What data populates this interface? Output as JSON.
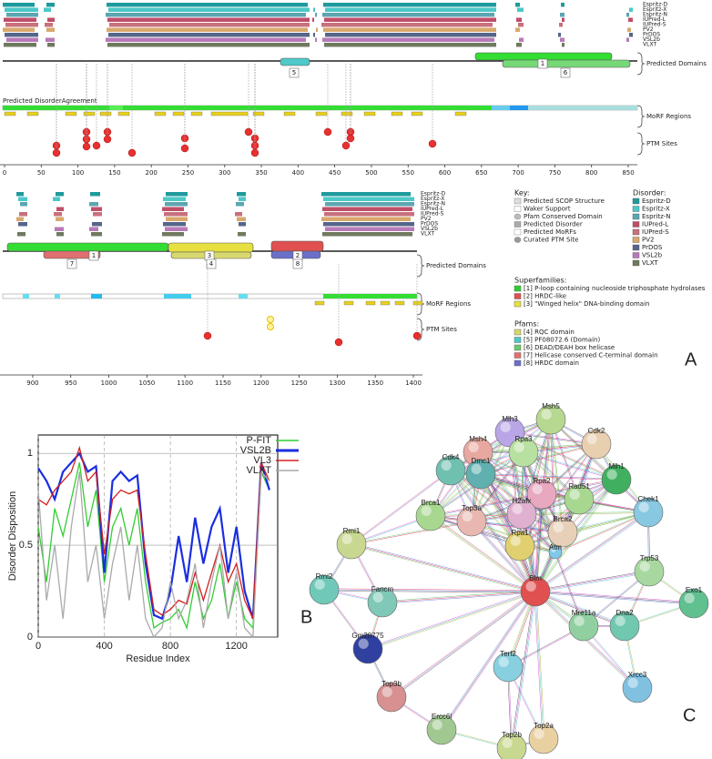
{
  "panel_a": {
    "label": "A",
    "top": {
      "track_labels": [
        "Espritz-D",
        "Espritz-X",
        "Espritz-N",
        "IUPred-L",
        "IUPred-S",
        "PV2",
        "PrDOS",
        "VSL2b",
        "VLXT"
      ],
      "agreement_label": "Predicted DisorderAgreement",
      "region_labels": [
        "Predicted Domains",
        "MoRF Regions",
        "PTM Sites"
      ],
      "domain_numbers": [
        "5",
        "1",
        "6"
      ],
      "xlim": [
        0,
        850
      ],
      "xticks": [
        0,
        50,
        100,
        150,
        200,
        250,
        300,
        350,
        400,
        450,
        500,
        550,
        600,
        650,
        700,
        750,
        800,
        850
      ]
    },
    "bottom": {
      "track_labels": [
        "Espritz-D",
        "Espritz-X",
        "Espritz-N",
        "IUPred-L",
        "IUPred-S",
        "PV2",
        "PrDOS",
        "VSL2b",
        "VLXT"
      ],
      "region_labels": [
        "Predicted Domains",
        "MoRF Regions",
        "PTM Sites"
      ],
      "domain_numbers": [
        "7",
        "1",
        "3",
        "4",
        "2",
        "8"
      ],
      "xlim": [
        857,
        1400
      ],
      "xticks": [
        900,
        950,
        1000,
        1050,
        1100,
        1150,
        1200,
        1250,
        1300,
        1350,
        1400
      ]
    },
    "key": {
      "title": "Key:",
      "items": [
        "Predicted SCOP Structure",
        "Waker Support",
        "Pfam Conserved Domain",
        "Predicted Disorder",
        "Predicted MoRFs",
        "Curated PTM Site"
      ]
    },
    "disorder": {
      "title": "Disorder:",
      "items": [
        {
          "name": "Espritz-D",
          "color": "#1f9a9c"
        },
        {
          "name": "Espritz-X",
          "color": "#4cc8c8"
        },
        {
          "name": "Espritz-N",
          "color": "#5ba6b2"
        },
        {
          "name": "IUPred-L",
          "color": "#c04f69"
        },
        {
          "name": "IUPred-S",
          "color": "#c8717c"
        },
        {
          "name": "PV2",
          "color": "#d9a86c"
        },
        {
          "name": "PrDOS",
          "color": "#56668a"
        },
        {
          "name": "VSL2b",
          "color": "#b87ab8"
        },
        {
          "name": "VLXT",
          "color": "#6f7a5f"
        }
      ]
    },
    "superfamilies": {
      "title": "Superfamilies:",
      "items": [
        {
          "name": "[1] P-loop containing nucleoside triphosphate hydrolases",
          "color": "#33cc33"
        },
        {
          "name": "[2] HRDC-like",
          "color": "#e05050"
        },
        {
          "name": "[3] \"Winged helix\" DNA-binding domain",
          "color": "#e8e040"
        }
      ]
    },
    "pfams": {
      "title": "Pfams:",
      "items": [
        {
          "name": "[4] RQC domain",
          "color": "#d8d870"
        },
        {
          "name": "[5] PF08072.6 (Domain)",
          "color": "#50c8c8"
        },
        {
          "name": "[6] DEAD/DEAH box helicase",
          "color": "#70c870"
        },
        {
          "name": "[7] Helicase conserved C-terminal domain",
          "color": "#e07070"
        },
        {
          "name": "[8] HRDC domain",
          "color": "#6a70c8"
        }
      ]
    }
  },
  "panel_b": {
    "label": "B"
  },
  "chart_data": {
    "type": "line",
    "x_label": "Residue Index",
    "y_label": "Disorder Disposition",
    "x": [
      0,
      50,
      100,
      150,
      200,
      250,
      300,
      350,
      400,
      450,
      500,
      550,
      600,
      650,
      700,
      750,
      800,
      850,
      900,
      950,
      1000,
      1050,
      1100,
      1150,
      1200,
      1250,
      1300,
      1350,
      1400
    ],
    "series": [
      {
        "name": "P-FIT",
        "color": "#33cc33",
        "values": [
          0.6,
          0.3,
          0.7,
          0.55,
          0.75,
          0.95,
          0.6,
          0.8,
          0.3,
          0.6,
          0.7,
          0.5,
          0.7,
          0.3,
          0.05,
          0.08,
          0.1,
          0.15,
          0.05,
          0.3,
          0.1,
          0.2,
          0.4,
          0.1,
          0.3,
          0.1,
          0.05,
          0.9,
          0.8
        ]
      },
      {
        "name": "VSL2B",
        "color": "#1a2ee0",
        "values": [
          0.92,
          0.85,
          0.75,
          0.9,
          0.95,
          1.0,
          0.9,
          0.93,
          0.35,
          0.85,
          0.9,
          0.85,
          0.88,
          0.4,
          0.12,
          0.1,
          0.25,
          0.55,
          0.3,
          0.65,
          0.4,
          0.6,
          0.7,
          0.35,
          0.6,
          0.25,
          0.1,
          0.95,
          0.8
        ]
      },
      {
        "name": "VL3",
        "color": "#d42020",
        "values": [
          0.75,
          0.72,
          0.8,
          0.85,
          0.9,
          1.03,
          0.85,
          0.9,
          0.45,
          0.75,
          0.8,
          0.78,
          0.8,
          0.45,
          0.15,
          0.12,
          0.15,
          0.2,
          0.18,
          0.35,
          0.2,
          0.35,
          0.5,
          0.3,
          0.4,
          0.2,
          0.1,
          0.95,
          0.85
        ]
      },
      {
        "name": "VLXT",
        "color": "#aaaaaa",
        "values": [
          0.8,
          0.2,
          0.5,
          0.1,
          0.6,
          0.9,
          0.3,
          0.5,
          0.1,
          0.4,
          0.6,
          0.2,
          0.5,
          0.1,
          0,
          0.05,
          0.3,
          0.1,
          0.2,
          0.4,
          0.05,
          0.3,
          0.5,
          0.1,
          0.35,
          0.05,
          0,
          0.9,
          0.85
        ]
      }
    ],
    "xlim": [
      0,
      1450
    ],
    "ylim": [
      0,
      1.1
    ],
    "xticks": [
      0,
      400,
      800,
      1200
    ],
    "yticks": [
      0,
      0.5,
      1
    ],
    "grid": true
  },
  "panel_c": {
    "label": "C",
    "nodes": [
      "Mlh3",
      "Msh4",
      "Msh5",
      "Cdk2",
      "Cdk4",
      "Dmc1",
      "Rpa3",
      "Mlh1",
      "Rpa2",
      "Rad51",
      "H2afx",
      "Chek1",
      "Brca1",
      "Top3a",
      "Brca2",
      "Rpa1",
      "Atm",
      "Rmi1",
      "Trp53",
      "Blm",
      "Fancm",
      "Rmi2",
      "Exo1",
      "Dna2",
      "Gm20775",
      "Mre11a",
      "Terf2",
      "Xrcc3",
      "Top3b",
      "Ercc6l",
      "Top2b",
      "Top2a"
    ]
  }
}
